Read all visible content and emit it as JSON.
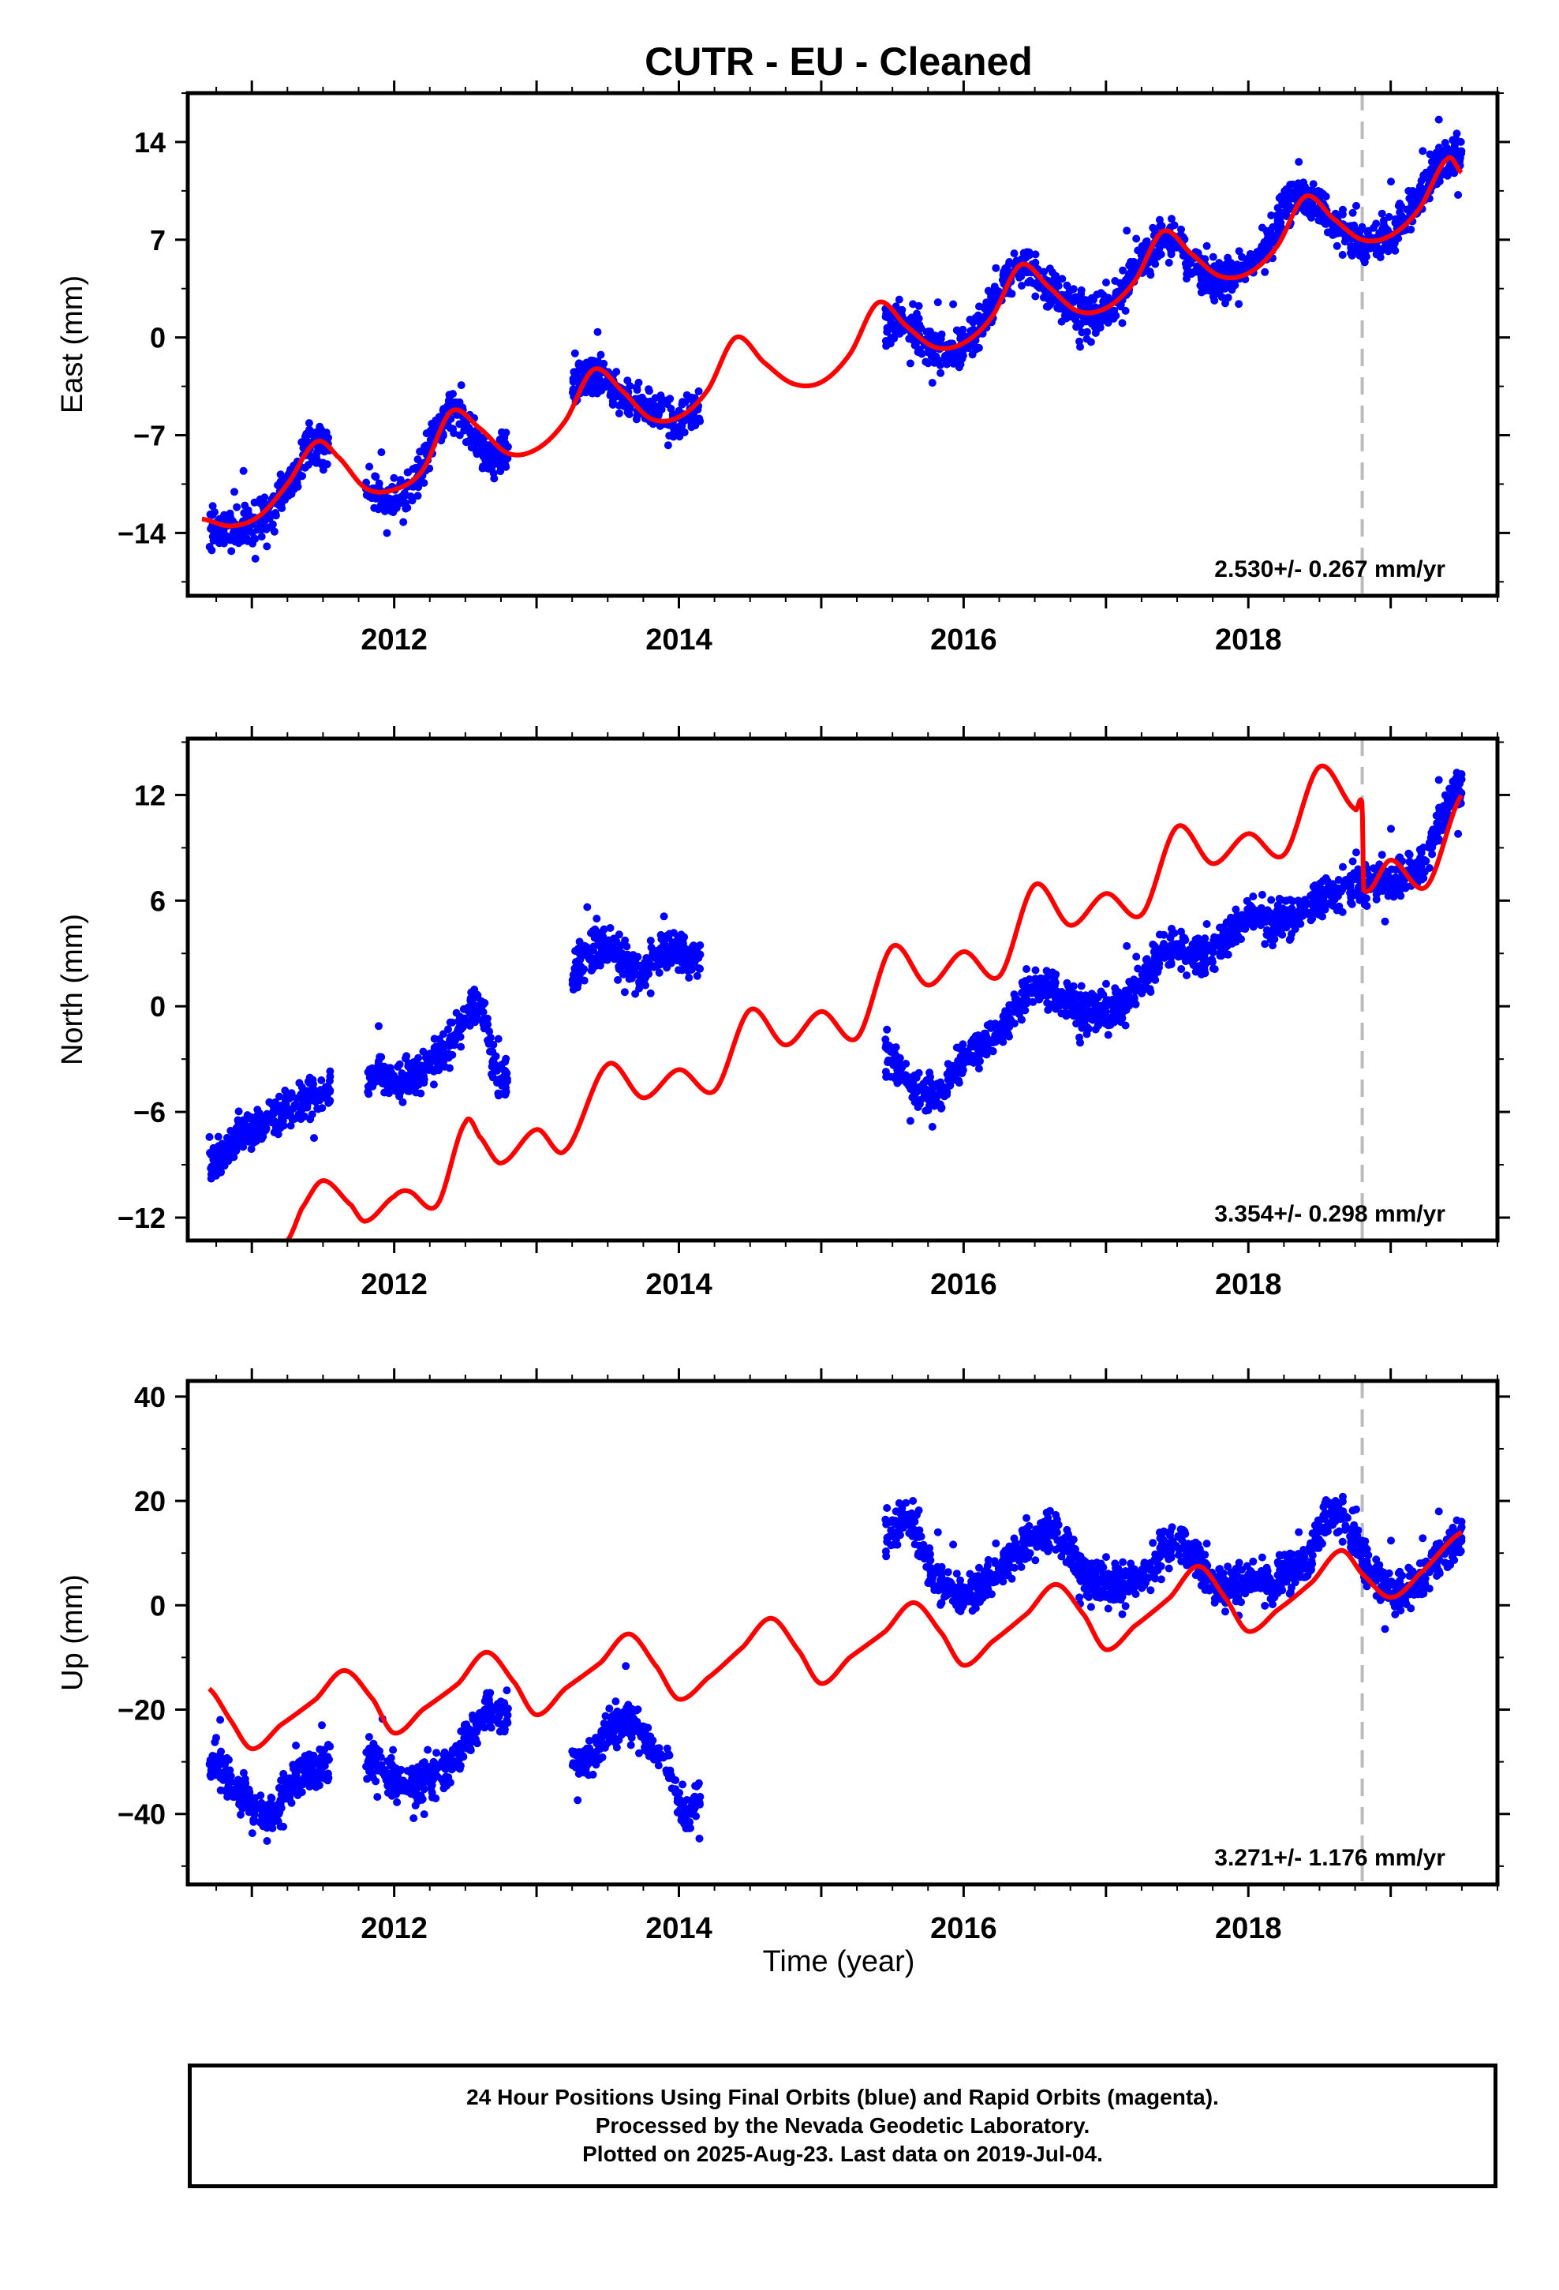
{
  "title": "CUTR  - EU - Cleaned",
  "xlabel": "Time (year)",
  "colors": {
    "data": "#0000ff",
    "model": "#ff0000",
    "break": "#bbbbbb",
    "frame": "#000000"
  },
  "caption": [
    "24 Hour Positions Using Final Orbits (blue) and Rapid Orbits (magenta).",
    "Processed by the Nevada Geodetic Laboratory.",
    "Plotted on 2025-Aug-23. Last data on 2019-Jul-04."
  ],
  "chart_data": [
    {
      "type": "scatter",
      "ylabel": "East (mm)",
      "xlim": [
        2010.55,
        2019.75
      ],
      "ylim": [
        -18.5,
        17.5
      ],
      "xticks": [
        2012,
        2014,
        2016,
        2018
      ],
      "yticks": [
        -14,
        -7,
        0,
        7,
        14
      ],
      "rate_label": "2.530+/- 0.267 mm/yr",
      "break_x": 2018.8,
      "data_segments": [
        [
          2010.7,
          2011.55
        ],
        [
          2011.8,
          2012.8
        ],
        [
          2013.25,
          2014.15
        ],
        [
          2015.45,
          2019.5
        ]
      ],
      "series": [
        {
          "name": "24 hr positions",
          "values": [
            [
              2010.7,
              -13.5
            ],
            [
              2010.9,
              -14.0
            ],
            [
              2011.1,
              -12.5
            ],
            [
              2011.3,
              -10.0
            ],
            [
              2011.45,
              -7.5
            ],
            [
              2011.85,
              -11.0
            ],
            [
              2012.1,
              -11.0
            ],
            [
              2012.4,
              -5.5
            ],
            [
              2012.7,
              -8.5
            ],
            [
              2013.4,
              -2.5
            ],
            [
              2013.6,
              -4.5
            ],
            [
              2013.9,
              -5.5
            ],
            [
              2014.1,
              -5.0
            ],
            [
              2015.55,
              1.0
            ],
            [
              2015.8,
              -1.0
            ],
            [
              2016.0,
              -0.5
            ],
            [
              2016.4,
              5.0
            ],
            [
              2016.7,
              2.5
            ],
            [
              2017.0,
              2.0
            ],
            [
              2017.4,
              7.0
            ],
            [
              2017.7,
              4.5
            ],
            [
              2018.0,
              5.0
            ],
            [
              2018.35,
              10.0
            ],
            [
              2018.75,
              7.0
            ],
            [
              2019.0,
              7.5
            ],
            [
              2019.4,
              13.0
            ]
          ]
        },
        {
          "name": "model",
          "values": [
            [
              2010.65,
              -13
            ],
            [
              2010.85,
              -13.5
            ],
            [
              2011.05,
              -12.8
            ],
            [
              2011.25,
              -10.5
            ],
            [
              2011.45,
              -7.5
            ],
            [
              2011.6,
              -8.5
            ],
            [
              2011.8,
              -10.8
            ],
            [
              2012.0,
              -10.9
            ],
            [
              2012.2,
              -9.5
            ],
            [
              2012.4,
              -5.3
            ],
            [
              2012.6,
              -6.5
            ],
            [
              2012.8,
              -8.3
            ],
            [
              2013.0,
              -8.0
            ],
            [
              2013.2,
              -6.0
            ],
            [
              2013.4,
              -2.3
            ],
            [
              2013.6,
              -3.8
            ],
            [
              2013.8,
              -5.8
            ],
            [
              2014.0,
              -5.7
            ],
            [
              2014.2,
              -3.8
            ],
            [
              2014.4,
              0.0
            ],
            [
              2014.6,
              -1.8
            ],
            [
              2014.8,
              -3.3
            ],
            [
              2015.0,
              -3.2
            ],
            [
              2015.2,
              -1.2
            ],
            [
              2015.4,
              2.5
            ],
            [
              2015.6,
              0.8
            ],
            [
              2015.8,
              -0.7
            ],
            [
              2016.0,
              -0.4
            ],
            [
              2016.2,
              1.5
            ],
            [
              2016.4,
              5.2
            ],
            [
              2016.6,
              3.6
            ],
            [
              2016.8,
              1.9
            ],
            [
              2017.0,
              2.1
            ],
            [
              2017.2,
              4.0
            ],
            [
              2017.4,
              7.6
            ],
            [
              2017.6,
              6.0
            ],
            [
              2017.8,
              4.4
            ],
            [
              2018.0,
              4.6
            ],
            [
              2018.2,
              6.5
            ],
            [
              2018.4,
              10.1
            ],
            [
              2018.6,
              8.5
            ],
            [
              2018.8,
              7.0
            ],
            [
              2019.0,
              7.3
            ],
            [
              2019.2,
              9.2
            ],
            [
              2019.4,
              12.8
            ],
            [
              2019.5,
              11.8
            ]
          ]
        }
      ]
    },
    {
      "type": "scatter",
      "ylabel": "North (mm)",
      "xlim": [
        2010.55,
        2019.75
      ],
      "ylim": [
        -13.3,
        15.2
      ],
      "xticks": [
        2012,
        2014,
        2016,
        2018
      ],
      "yticks": [
        -12,
        -6,
        0,
        6,
        12
      ],
      "rate_label": "3.354+/- 0.298 mm/yr",
      "break_x": 2018.8,
      "data_segments": [
        [
          2010.7,
          2011.55
        ],
        [
          2011.8,
          2012.8
        ],
        [
          2013.25,
          2014.15
        ],
        [
          2015.45,
          2019.5
        ]
      ],
      "series": [
        {
          "name": "24 hr positions",
          "values": [
            [
              2010.7,
              -9.0
            ],
            [
              2010.9,
              -7.5
            ],
            [
              2011.1,
              -6.5
            ],
            [
              2011.3,
              -5.5
            ],
            [
              2011.5,
              -5.0
            ],
            [
              2011.85,
              -4.0
            ],
            [
              2012.1,
              -4.0
            ],
            [
              2012.4,
              -2.0
            ],
            [
              2012.6,
              0.0
            ],
            [
              2012.75,
              -4.0
            ],
            [
              2013.3,
              2.0
            ],
            [
              2013.5,
              3.5
            ],
            [
              2013.7,
              2.0
            ],
            [
              2014.0,
              3.0
            ],
            [
              2015.5,
              -3.0
            ],
            [
              2015.8,
              -5.0
            ],
            [
              2016.0,
              -3.0
            ],
            [
              2016.3,
              -1.0
            ],
            [
              2016.5,
              1.0
            ],
            [
              2016.8,
              0.0
            ],
            [
              2017.1,
              0.0
            ],
            [
              2017.4,
              3.0
            ],
            [
              2017.7,
              3.0
            ],
            [
              2018.0,
              5.0
            ],
            [
              2018.3,
              5.0
            ],
            [
              2018.6,
              6.5
            ],
            [
              2018.9,
              7.0
            ],
            [
              2019.2,
              8.0
            ],
            [
              2019.45,
              12.0
            ]
          ]
        },
        {
          "name": "model",
          "values": [
            [
              2011.25,
              -13.3
            ],
            [
              2011.35,
              -11.5
            ],
            [
              2011.5,
              -9.9
            ],
            [
              2011.7,
              -11.3
            ],
            [
              2011.8,
              -12.2
            ],
            [
              2012.0,
              -10.8
            ],
            [
              2012.1,
              -10.5
            ],
            [
              2012.3,
              -11.3
            ],
            [
              2012.5,
              -6.6
            ],
            [
              2012.6,
              -7.4
            ],
            [
              2012.75,
              -8.9
            ],
            [
              2013.0,
              -7.0
            ],
            [
              2013.2,
              -8.2
            ],
            [
              2013.5,
              -3.3
            ],
            [
              2013.75,
              -5.2
            ],
            [
              2014.0,
              -3.6
            ],
            [
              2014.25,
              -4.8
            ],
            [
              2014.5,
              -0.2
            ],
            [
              2014.75,
              -2.2
            ],
            [
              2015.0,
              -0.3
            ],
            [
              2015.25,
              -1.8
            ],
            [
              2015.5,
              3.4
            ],
            [
              2015.75,
              1.2
            ],
            [
              2016.0,
              3.1
            ],
            [
              2016.25,
              1.7
            ],
            [
              2016.5,
              6.9
            ],
            [
              2016.75,
              4.6
            ],
            [
              2017.0,
              6.4
            ],
            [
              2017.25,
              5.2
            ],
            [
              2017.5,
              10.2
            ],
            [
              2017.75,
              8.1
            ],
            [
              2018.0,
              9.8
            ],
            [
              2018.25,
              8.6
            ],
            [
              2018.5,
              13.6
            ],
            [
              2018.75,
              11.2
            ],
            [
              2018.8,
              11.5
            ],
            [
              2018.81,
              6.6
            ],
            [
              2019.0,
              8.3
            ],
            [
              2019.25,
              6.8
            ],
            [
              2019.5,
              12.0
            ]
          ]
        }
      ]
    },
    {
      "type": "scatter",
      "ylabel": "Up (mm)",
      "xlim": [
        2010.55,
        2019.75
      ],
      "ylim": [
        -53.5,
        43
      ],
      "xticks": [
        2012,
        2014,
        2016,
        2018
      ],
      "yticks": [
        -40,
        -20,
        0,
        20,
        40
      ],
      "rate_label": "3.271+/- 1.176 mm/yr",
      "break_x": 2018.8,
      "data_segments": [
        [
          2010.7,
          2011.55
        ],
        [
          2011.8,
          2012.8
        ],
        [
          2013.25,
          2014.15
        ],
        [
          2015.45,
          2019.5
        ]
      ],
      "series": [
        {
          "name": "24 hr positions",
          "values": [
            [
              2010.7,
              -30
            ],
            [
              2010.9,
              -35
            ],
            [
              2011.1,
              -40
            ],
            [
              2011.3,
              -34
            ],
            [
              2011.5,
              -30
            ],
            [
              2011.85,
              -30
            ],
            [
              2012.1,
              -35
            ],
            [
              2012.4,
              -30
            ],
            [
              2012.7,
              -20
            ],
            [
              2013.3,
              -30
            ],
            [
              2013.6,
              -22
            ],
            [
              2013.9,
              -30
            ],
            [
              2014.1,
              -38
            ],
            [
              2015.55,
              15
            ],
            [
              2015.8,
              5
            ],
            [
              2016.0,
              2
            ],
            [
              2016.3,
              8
            ],
            [
              2016.6,
              14
            ],
            [
              2016.9,
              5
            ],
            [
              2017.2,
              5
            ],
            [
              2017.5,
              12
            ],
            [
              2017.8,
              4
            ],
            [
              2018.1,
              5
            ],
            [
              2018.4,
              8
            ],
            [
              2018.6,
              18
            ],
            [
              2018.9,
              5
            ],
            [
              2019.1,
              3
            ],
            [
              2019.45,
              12
            ]
          ]
        },
        {
          "name": "model",
          "values": [
            [
              2010.7,
              -16
            ],
            [
              2010.85,
              -22
            ],
            [
              2011.0,
              -27.5
            ],
            [
              2011.2,
              -23
            ],
            [
              2011.45,
              -18
            ],
            [
              2011.65,
              -12.5
            ],
            [
              2011.85,
              -18
            ],
            [
              2012.0,
              -24.5
            ],
            [
              2012.2,
              -20
            ],
            [
              2012.45,
              -15
            ],
            [
              2012.65,
              -9
            ],
            [
              2012.85,
              -15
            ],
            [
              2013.0,
              -21
            ],
            [
              2013.2,
              -16
            ],
            [
              2013.45,
              -11
            ],
            [
              2013.65,
              -5.5
            ],
            [
              2013.85,
              -12
            ],
            [
              2014.0,
              -18
            ],
            [
              2014.2,
              -14
            ],
            [
              2014.45,
              -8
            ],
            [
              2014.65,
              -2.5
            ],
            [
              2014.85,
              -9
            ],
            [
              2015.0,
              -15
            ],
            [
              2015.2,
              -10
            ],
            [
              2015.45,
              -5
            ],
            [
              2015.65,
              0.5
            ],
            [
              2015.85,
              -5.5
            ],
            [
              2016.0,
              -11.5
            ],
            [
              2016.2,
              -7
            ],
            [
              2016.45,
              -1.5
            ],
            [
              2016.65,
              4
            ],
            [
              2016.85,
              -2
            ],
            [
              2017.0,
              -8.5
            ],
            [
              2017.2,
              -4
            ],
            [
              2017.45,
              1.5
            ],
            [
              2017.65,
              7.5
            ],
            [
              2017.85,
              1
            ],
            [
              2018.0,
              -5
            ],
            [
              2018.2,
              -1
            ],
            [
              2018.45,
              4.5
            ],
            [
              2018.65,
              10.5
            ],
            [
              2018.8,
              6
            ],
            [
              2019.0,
              1.5
            ],
            [
              2019.2,
              6
            ],
            [
              2019.5,
              14
            ]
          ]
        }
      ]
    }
  ]
}
